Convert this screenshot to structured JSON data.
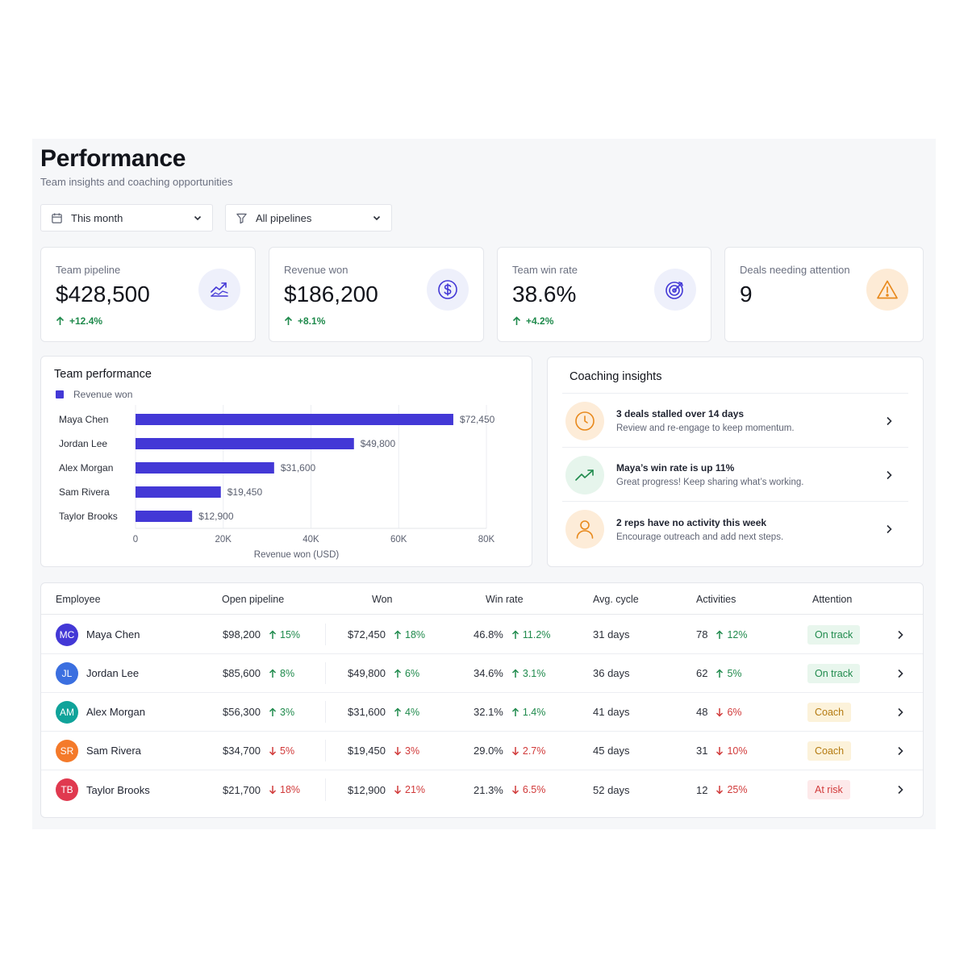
{
  "header": {
    "title": "Performance",
    "subtitle": "Team insights and coaching opportunities"
  },
  "filters": {
    "date": {
      "label": "This month",
      "icon": "calendar-icon"
    },
    "pipeline": {
      "label": "All pipelines",
      "icon": "filter-icon"
    }
  },
  "kpis": [
    {
      "label": "Team pipeline",
      "value": "$428,500",
      "delta": "+12.4%",
      "icon": "trend-chart-icon"
    },
    {
      "label": "Revenue won",
      "value": "$186,200",
      "delta": "+8.1%",
      "icon": "dollar-icon"
    },
    {
      "label": "Team win rate",
      "value": "38.6%",
      "delta": "+4.2%",
      "icon": "target-icon"
    },
    {
      "label": "Deals needing attention",
      "value": "9",
      "icon": "warning-icon"
    }
  ],
  "team_performance": {
    "title": "Team performance",
    "legend": "Revenue won"
  },
  "chart_data": {
    "type": "bar",
    "orientation": "horizontal",
    "categories": [
      "Maya Chen",
      "Jordan Lee",
      "Alex Morgan",
      "Sam Rivera",
      "Taylor Brooks"
    ],
    "values": [
      72450,
      49800,
      31600,
      19450,
      12900
    ],
    "value_labels": [
      "$72,450",
      "$49,800",
      "$31,600",
      "$19,450",
      "$12,900"
    ],
    "series": [
      {
        "name": "Revenue won",
        "values": [
          72450,
          49800,
          31600,
          19450,
          12900
        ]
      }
    ],
    "xlabel": "Revenue won (USD)",
    "ylabel": "",
    "xlim": [
      0,
      80000
    ],
    "xticks": [
      0,
      20000,
      40000,
      60000,
      80000
    ],
    "xtick_labels": [
      "0",
      "20K",
      "40K",
      "60K",
      "80K"
    ],
    "grid": "vertical",
    "legend_position": "top-left",
    "color": "#4338d6"
  },
  "coaching": {
    "title": "Coaching insights",
    "items": [
      {
        "title": "3 deals stalled over 14 days",
        "subtitle": "Review and re-engage to keep momentum.",
        "icon": "clock-icon"
      },
      {
        "title": "Maya’s win rate is up 11%",
        "subtitle": "Great progress! Keep sharing what’s working.",
        "icon": "trending-up-icon"
      },
      {
        "title": "2 reps have no activity this week",
        "subtitle": "Encourage outreach and add next steps.",
        "icon": "user-icon"
      }
    ]
  },
  "table": {
    "headers": {
      "employee": "Employee",
      "open_pipeline": "Open pipeline",
      "won": "Won",
      "win_rate": "Win rate",
      "avg_cycle": "Avg. cycle",
      "activities": "Activities",
      "attention": "Attention"
    },
    "rows": [
      {
        "initials": "MC",
        "avatar_color": "#4338d6",
        "name": "Maya Chen",
        "pipeline": "$98,200",
        "pipeline_delta": "15%",
        "pipeline_dir": "up",
        "won": "$72,450",
        "won_delta": "18%",
        "won_dir": "up",
        "win_rate": "46.8%",
        "win_rate_delta": "11.2%",
        "win_rate_dir": "up",
        "avg_cycle": "31 days",
        "activities": "78",
        "activities_delta": "12%",
        "activities_dir": "up",
        "status": "On track",
        "status_tone": "green"
      },
      {
        "initials": "JL",
        "avatar_color": "#3b6fe0",
        "name": "Jordan Lee",
        "pipeline": "$85,600",
        "pipeline_delta": "8%",
        "pipeline_dir": "up",
        "won": "$49,800",
        "won_delta": "6%",
        "won_dir": "up",
        "win_rate": "34.6%",
        "win_rate_delta": "3.1%",
        "win_rate_dir": "up",
        "avg_cycle": "36 days",
        "activities": "62",
        "activities_delta": "5%",
        "activities_dir": "up",
        "status": "On track",
        "status_tone": "green"
      },
      {
        "initials": "AM",
        "avatar_color": "#10a39a",
        "name": "Alex Morgan",
        "pipeline": "$56,300",
        "pipeline_delta": "3%",
        "pipeline_dir": "up",
        "won": "$31,600",
        "won_delta": "4%",
        "won_dir": "up",
        "win_rate": "32.1%",
        "win_rate_delta": "1.4%",
        "win_rate_dir": "up",
        "avg_cycle": "41 days",
        "activities": "48",
        "activities_delta": "6%",
        "activities_dir": "down",
        "status": "Coach",
        "status_tone": "yellow"
      },
      {
        "initials": "SR",
        "avatar_color": "#f47a2a",
        "name": "Sam Rivera",
        "pipeline": "$34,700",
        "pipeline_delta": "5%",
        "pipeline_dir": "down",
        "won": "$19,450",
        "won_delta": "3%",
        "won_dir": "down",
        "win_rate": "29.0%",
        "win_rate_delta": "2.7%",
        "win_rate_dir": "down",
        "avg_cycle": "45 days",
        "activities": "31",
        "activities_delta": "10%",
        "activities_dir": "down",
        "status": "Coach",
        "status_tone": "yellow"
      },
      {
        "initials": "TB",
        "avatar_color": "#e0394f",
        "name": "Taylor Brooks",
        "pipeline": "$21,700",
        "pipeline_delta": "18%",
        "pipeline_dir": "down",
        "won": "$12,900",
        "won_delta": "21%",
        "won_dir": "down",
        "win_rate": "21.3%",
        "win_rate_delta": "6.5%",
        "win_rate_dir": "down",
        "avg_cycle": "52 days",
        "activities": "12",
        "activities_delta": "25%",
        "activities_dir": "down",
        "status": "At risk",
        "status_tone": "red"
      }
    ]
  }
}
